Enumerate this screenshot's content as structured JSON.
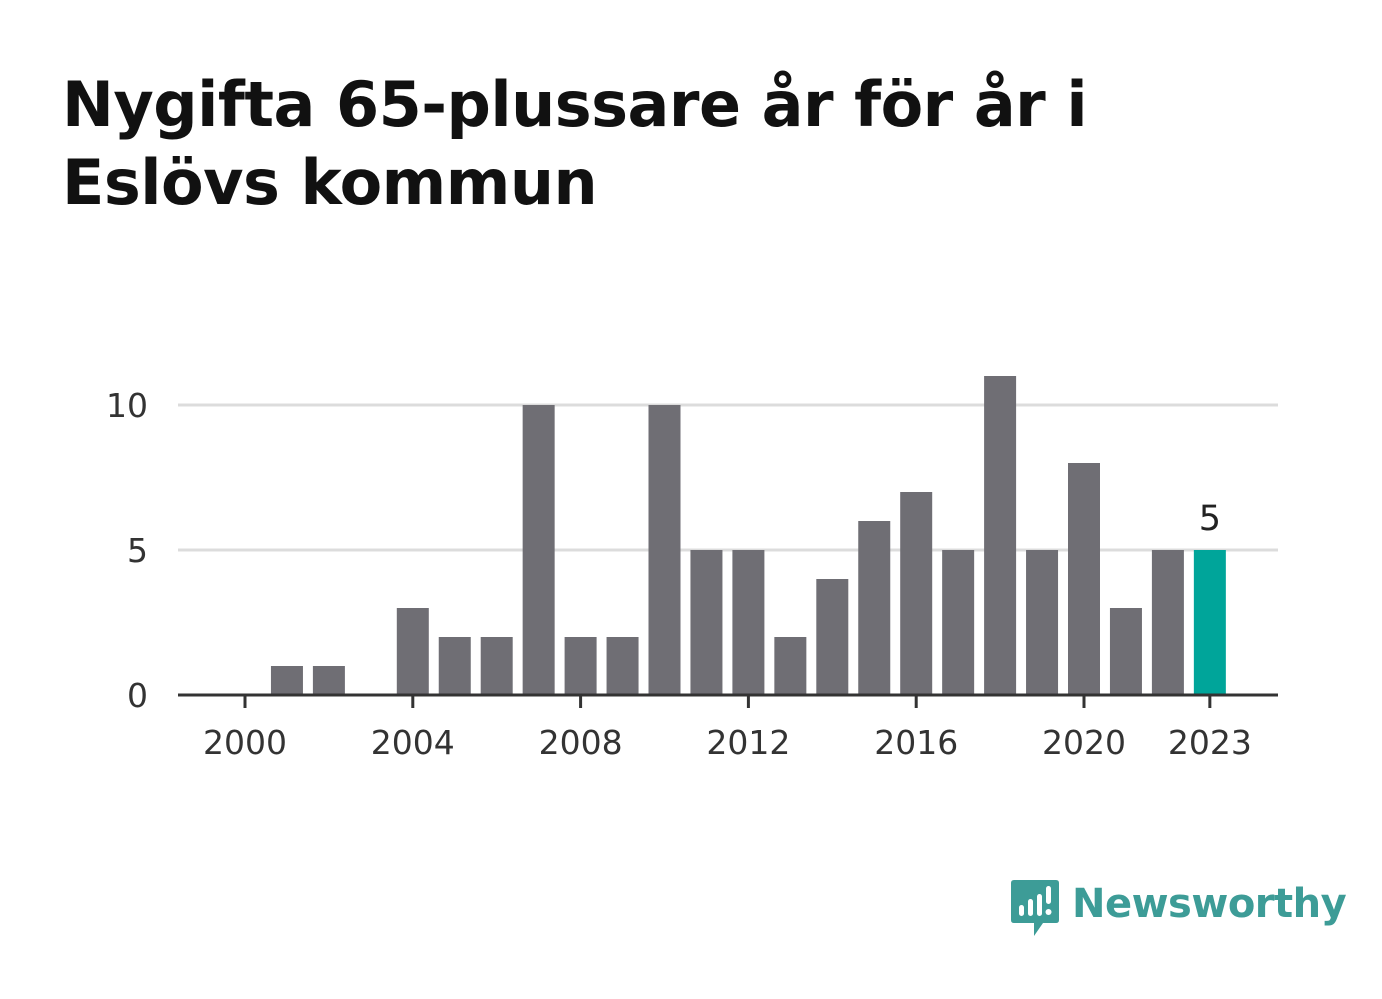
{
  "title": "Nygifta 65-plussare år för år i Eslövs kommun",
  "chart_data": {
    "type": "bar",
    "title": "Nygifta 65-plussare år för år i Eslövs kommun",
    "xlabel": "",
    "ylabel": "",
    "categories": [
      2000,
      2001,
      2002,
      2003,
      2004,
      2005,
      2006,
      2007,
      2008,
      2009,
      2010,
      2011,
      2012,
      2013,
      2014,
      2015,
      2016,
      2017,
      2018,
      2019,
      2020,
      2021,
      2022,
      2023
    ],
    "values": [
      0,
      1,
      1,
      0,
      3,
      2,
      2,
      10,
      2,
      2,
      10,
      5,
      5,
      2,
      4,
      6,
      7,
      5,
      11,
      5,
      8,
      3,
      5,
      5
    ],
    "x_ticks": [
      "2000",
      "2004",
      "2008",
      "2012",
      "2016",
      "2020",
      "2023"
    ],
    "y_ticks": [
      "0",
      "5",
      "10"
    ],
    "ylim": [
      0,
      11
    ],
    "grid": true,
    "highlight": {
      "category": 2023,
      "label": "5",
      "color": "#00a59a"
    },
    "bar_color": "#6f6e74",
    "gridline_color": "#dcdcdc",
    "axis_color": "#333333"
  },
  "logo": {
    "text": "Newsworthy",
    "icon": "newsworthy-bar-chart-icon",
    "color": "#3d9c97"
  }
}
